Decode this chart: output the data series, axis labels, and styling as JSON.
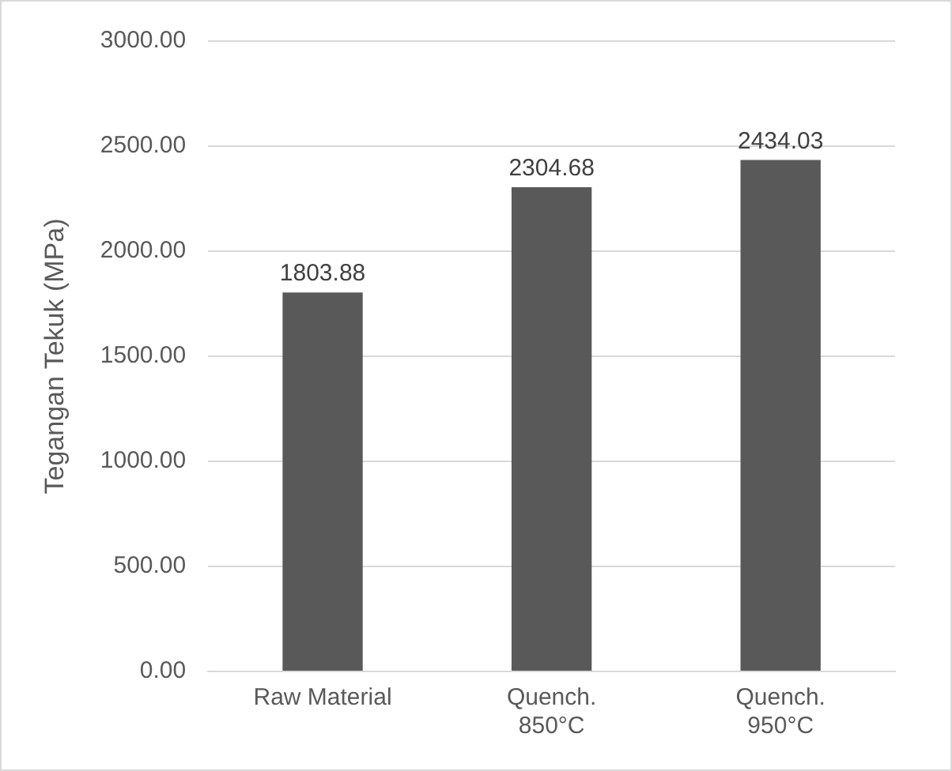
{
  "chart_data": {
    "type": "bar",
    "ylabel": "Tegangan Tekuk (MPa)",
    "categories": [
      "Raw Material",
      "Quench. 850°C",
      "Quench. 950°C"
    ],
    "values": [
      1803.88,
      2304.68,
      2434.03
    ],
    "color": "#595959",
    "ylim": [
      0,
      3000
    ],
    "yticks": [
      {
        "value": 0,
        "label": "0.00"
      },
      {
        "value": 500,
        "label": "500.00"
      },
      {
        "value": 1000,
        "label": "1000.00"
      },
      {
        "value": 1500,
        "label": "1500.00"
      },
      {
        "value": 2000,
        "label": "2000.00"
      },
      {
        "value": 2500,
        "label": "2500.00"
      },
      {
        "value": 3000,
        "label": "3000.00"
      }
    ],
    "grid": "y",
    "data_labels": true,
    "legend": false
  }
}
